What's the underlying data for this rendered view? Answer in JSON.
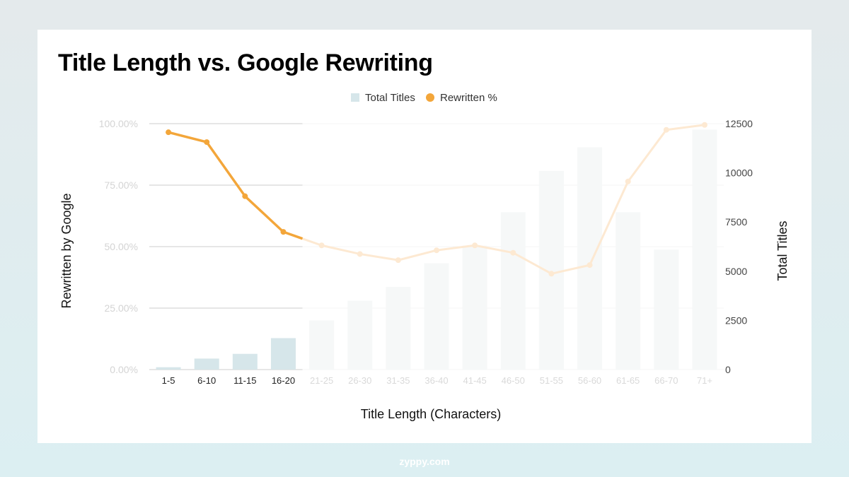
{
  "title": "Title Length vs. Google Rewriting",
  "footer": "zyppy.com",
  "colors": {
    "bar": "#d6e6ea",
    "line": "#f3a63a",
    "faded_bar": "#f6f8f8",
    "faded_line": "#fde9d2",
    "grid": "#cccccc"
  },
  "chart_data": {
    "type": "bar",
    "title": "Title Length vs. Google Rewriting",
    "xlabel": "Title Length (Characters)",
    "ylabel_left": "Rewritten by Google",
    "ylabel_right": "Total Titles",
    "highlighted_count": 4,
    "categories": [
      "1-5",
      "6-10",
      "11-15",
      "16-20",
      "21-25",
      "26-30",
      "31-35",
      "36-40",
      "41-45",
      "46-50",
      "51-55",
      "56-60",
      "61-65",
      "66-70",
      "71+"
    ],
    "series": [
      {
        "name": "Total Titles",
        "type": "bar",
        "axis": "right",
        "values": [
          120,
          560,
          800,
          1600,
          2500,
          3500,
          4200,
          5400,
          6300,
          8000,
          10100,
          11300,
          8000,
          6100,
          12200
        ]
      },
      {
        "name": "Rewritten %",
        "type": "line",
        "axis": "left",
        "values": [
          96.5,
          92.5,
          70.5,
          56.0,
          50.5,
          47.0,
          44.5,
          48.5,
          50.5,
          47.5,
          39.0,
          42.5,
          76.5,
          97.5,
          99.5
        ]
      }
    ],
    "y_left": {
      "ylim": [
        0,
        100
      ],
      "ticks": [
        "0.00%",
        "25.00%",
        "50.00%",
        "75.00%",
        "100.00%"
      ]
    },
    "y_right": {
      "ylim": [
        0,
        12500
      ],
      "ticks": [
        "0",
        "2500",
        "5000",
        "7500",
        "10000",
        "12500"
      ]
    },
    "legend": {
      "placement": "top",
      "items": [
        "Total Titles",
        "Rewritten %"
      ]
    },
    "grid": true
  }
}
